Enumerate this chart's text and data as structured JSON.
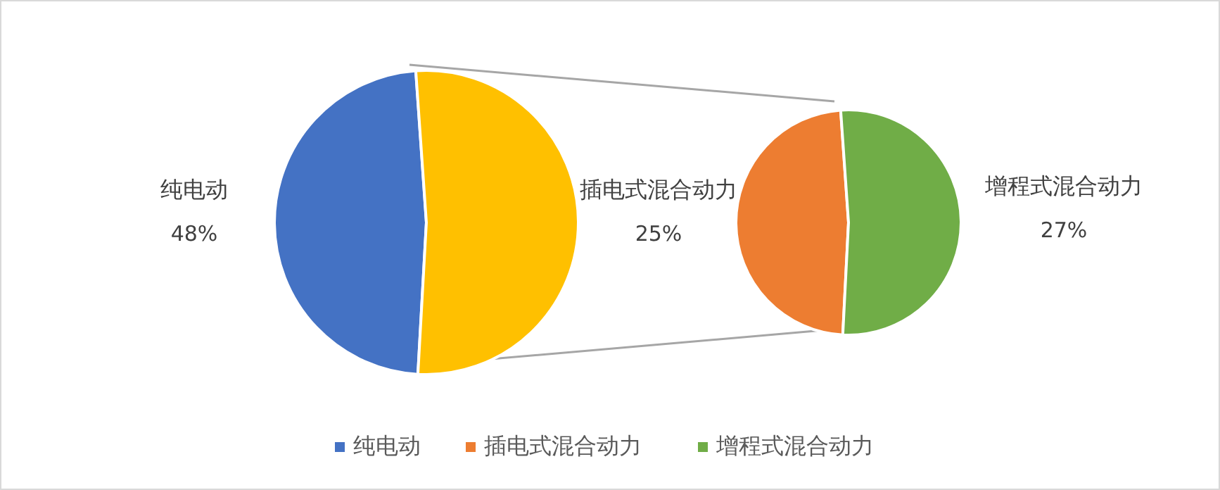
{
  "chart_data": [
    {
      "type": "pie",
      "categories": [
        "纯电动",
        null
      ],
      "values": [
        48,
        52
      ],
      "colors": [
        "#4472c4",
        "#ffc000"
      ],
      "value_labels": [
        "48%",
        null
      ],
      "legend": "bottom"
    },
    {
      "type": "pie",
      "categories": [
        "插电式混合动力",
        "增程式混合动力"
      ],
      "values": [
        25,
        27
      ],
      "colors": [
        "#ed7d31",
        "#70ad47"
      ],
      "value_labels": [
        "25%",
        "27%"
      ],
      "legend": "bottom"
    }
  ]
}
